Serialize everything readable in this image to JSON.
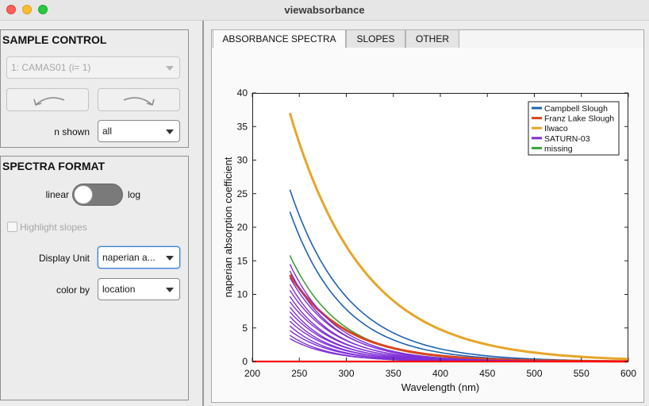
{
  "window": {
    "title": "viewabsorbance"
  },
  "sample_control": {
    "title": "SAMPLE CONTROL",
    "sample_select": {
      "value": "1: CAMAS01 (i= 1)"
    },
    "prev_icon": "curved-arrow-left-icon",
    "next_icon": "curved-arrow-right-icon",
    "n_shown_label": "n shown",
    "n_shown_value": "all"
  },
  "spectra_format": {
    "title": "SPECTRA FORMAT",
    "switch_left_label": "linear",
    "switch_right_label": "log",
    "switch_state": "linear",
    "highlight_label": "Highlight slopes",
    "highlight_checked": false,
    "display_unit_label": "Display Unit",
    "display_unit_value": "naperian a...",
    "color_by_label": "color by",
    "color_by_value": "location"
  },
  "tabs": [
    {
      "label": "ABSORBANCE SPECTRA",
      "active": true
    },
    {
      "label": "SLOPES",
      "active": false
    },
    {
      "label": "OTHER",
      "active": false
    }
  ],
  "chart_data": {
    "type": "line",
    "title": "",
    "xlabel": "Wavelength (nm)",
    "ylabel": "naperian absorption coefficient",
    "xlim": [
      200,
      600
    ],
    "ylim": [
      0,
      40
    ],
    "xticks": [
      200,
      250,
      300,
      350,
      400,
      450,
      500,
      550,
      600
    ],
    "yticks": [
      0,
      5,
      10,
      15,
      20,
      25,
      30,
      35,
      40
    ],
    "grid": false,
    "legend": "top-right",
    "legend_entries": [
      "Campbell Slough",
      "Franz Lake Slough",
      "Ilwaco",
      "SATURN-03",
      "missing"
    ],
    "colors": {
      "Campbell Slough": "#1f62b0",
      "Franz Lake Slough": "#d9441c",
      "Ilwaco": "#e6a52a",
      "SATURN-03": "#7f2fd6",
      "missing": "#3aa33a",
      "baseline": "#ff0000"
    },
    "x_start": 240,
    "baseline_y": 0,
    "series": [
      {
        "name": "Ilwaco",
        "a240": 37.0,
        "slope": 0.0128,
        "width": 3
      },
      {
        "name": "Campbell Slough",
        "a240": 25.6,
        "slope": 0.0163,
        "width": 1.6
      },
      {
        "name": "Campbell Slough",
        "a240": 22.3,
        "slope": 0.0176,
        "width": 1.6
      },
      {
        "name": "missing",
        "a240": 15.8,
        "slope": 0.019,
        "width": 1.6
      },
      {
        "name": "Franz Lake Slough",
        "a240": 12.9,
        "slope": 0.017,
        "width": 3
      },
      {
        "name": "SATURN-03",
        "a240": 14.5,
        "slope": 0.0205,
        "width": 1.4
      },
      {
        "name": "SATURN-03",
        "a240": 13.5,
        "slope": 0.021,
        "width": 1.4
      },
      {
        "name": "SATURN-03",
        "a240": 12.5,
        "slope": 0.02,
        "width": 1.4
      },
      {
        "name": "SATURN-03",
        "a240": 11.5,
        "slope": 0.0215,
        "width": 1.4
      },
      {
        "name": "SATURN-03",
        "a240": 10.6,
        "slope": 0.0205,
        "width": 1.4
      },
      {
        "name": "SATURN-03",
        "a240": 9.7,
        "slope": 0.022,
        "width": 1.4
      },
      {
        "name": "SATURN-03",
        "a240": 8.9,
        "slope": 0.021,
        "width": 1.4
      },
      {
        "name": "SATURN-03",
        "a240": 8.1,
        "slope": 0.0225,
        "width": 1.4
      },
      {
        "name": "SATURN-03",
        "a240": 7.4,
        "slope": 0.0215,
        "width": 1.4
      },
      {
        "name": "SATURN-03",
        "a240": 6.7,
        "slope": 0.023,
        "width": 1.4
      },
      {
        "name": "SATURN-03",
        "a240": 6.0,
        "slope": 0.022,
        "width": 1.4
      },
      {
        "name": "SATURN-03",
        "a240": 5.3,
        "slope": 0.0235,
        "width": 1.4
      },
      {
        "name": "SATURN-03",
        "a240": 4.6,
        "slope": 0.0225,
        "width": 1.4
      },
      {
        "name": "SATURN-03",
        "a240": 3.9,
        "slope": 0.024,
        "width": 1.4
      },
      {
        "name": "SATURN-03",
        "a240": 3.4,
        "slope": 0.023,
        "width": 1.4
      }
    ]
  }
}
